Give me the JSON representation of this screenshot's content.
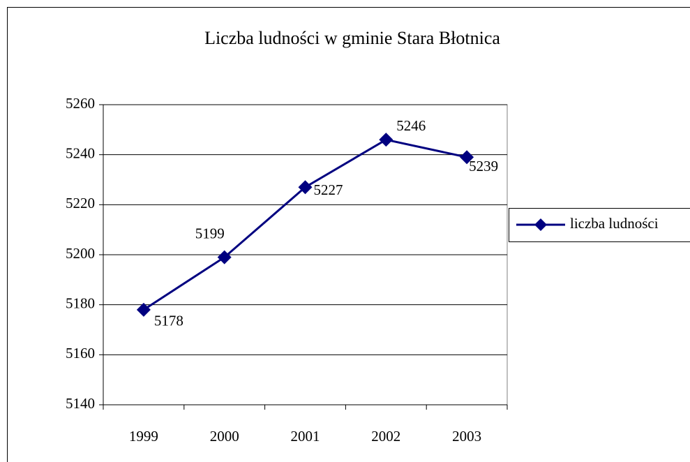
{
  "chart_data": {
    "type": "line",
    "title": "Liczba ludności w gminie Stara Błotnica",
    "categories": [
      "1999",
      "2000",
      "2001",
      "2002",
      "2003"
    ],
    "series": [
      {
        "name": "liczba ludności",
        "color": "#000080",
        "values": [
          5178,
          5199,
          5227,
          5246,
          5239
        ]
      }
    ],
    "ylim": [
      5140,
      5260
    ],
    "yticks": [
      5140,
      5160,
      5180,
      5200,
      5220,
      5240,
      5260
    ],
    "grid": true,
    "legend": "right",
    "data_labels": true
  }
}
